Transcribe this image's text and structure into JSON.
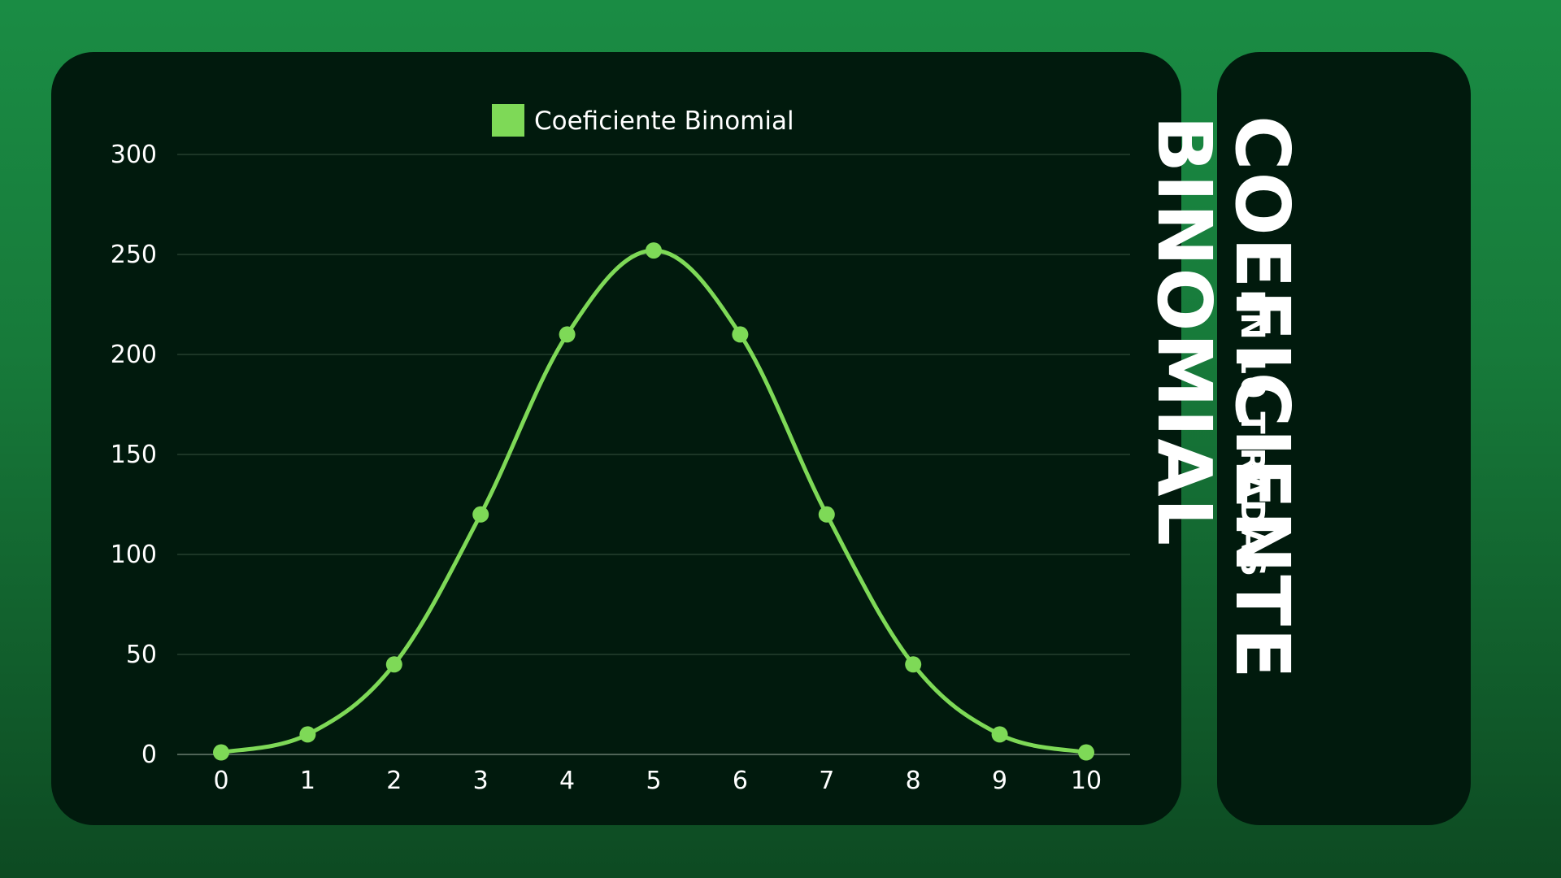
{
  "chart_data": {
    "type": "line",
    "title": "",
    "xlabel": "",
    "ylabel": "",
    "legend": {
      "label": "Coeficiente Binomial",
      "placement": "top-center"
    },
    "x": [
      "0",
      "1",
      "2",
      "3",
      "4",
      "5",
      "6",
      "7",
      "8",
      "9",
      "10"
    ],
    "series": [
      {
        "name": "Coeficiente Binomial",
        "values": [
          1,
          10,
          45,
          120,
          210,
          252,
          210,
          120,
          45,
          10,
          1
        ]
      }
    ],
    "yticks": [
      "0",
      "50",
      "100",
      "150",
      "200",
      "250",
      "300"
    ],
    "ylim": [
      0,
      300
    ],
    "grid": true,
    "smooth": true,
    "colors": {
      "line": "#7ed957",
      "grid": "#26402f",
      "axis": "#6b7d70",
      "tick_text": "#ffffff"
    }
  },
  "side_title": {
    "line1": "COEFICIENTE",
    "line2": "BINOMIAL",
    "subtitle": "EN 10 TIRADAS"
  }
}
